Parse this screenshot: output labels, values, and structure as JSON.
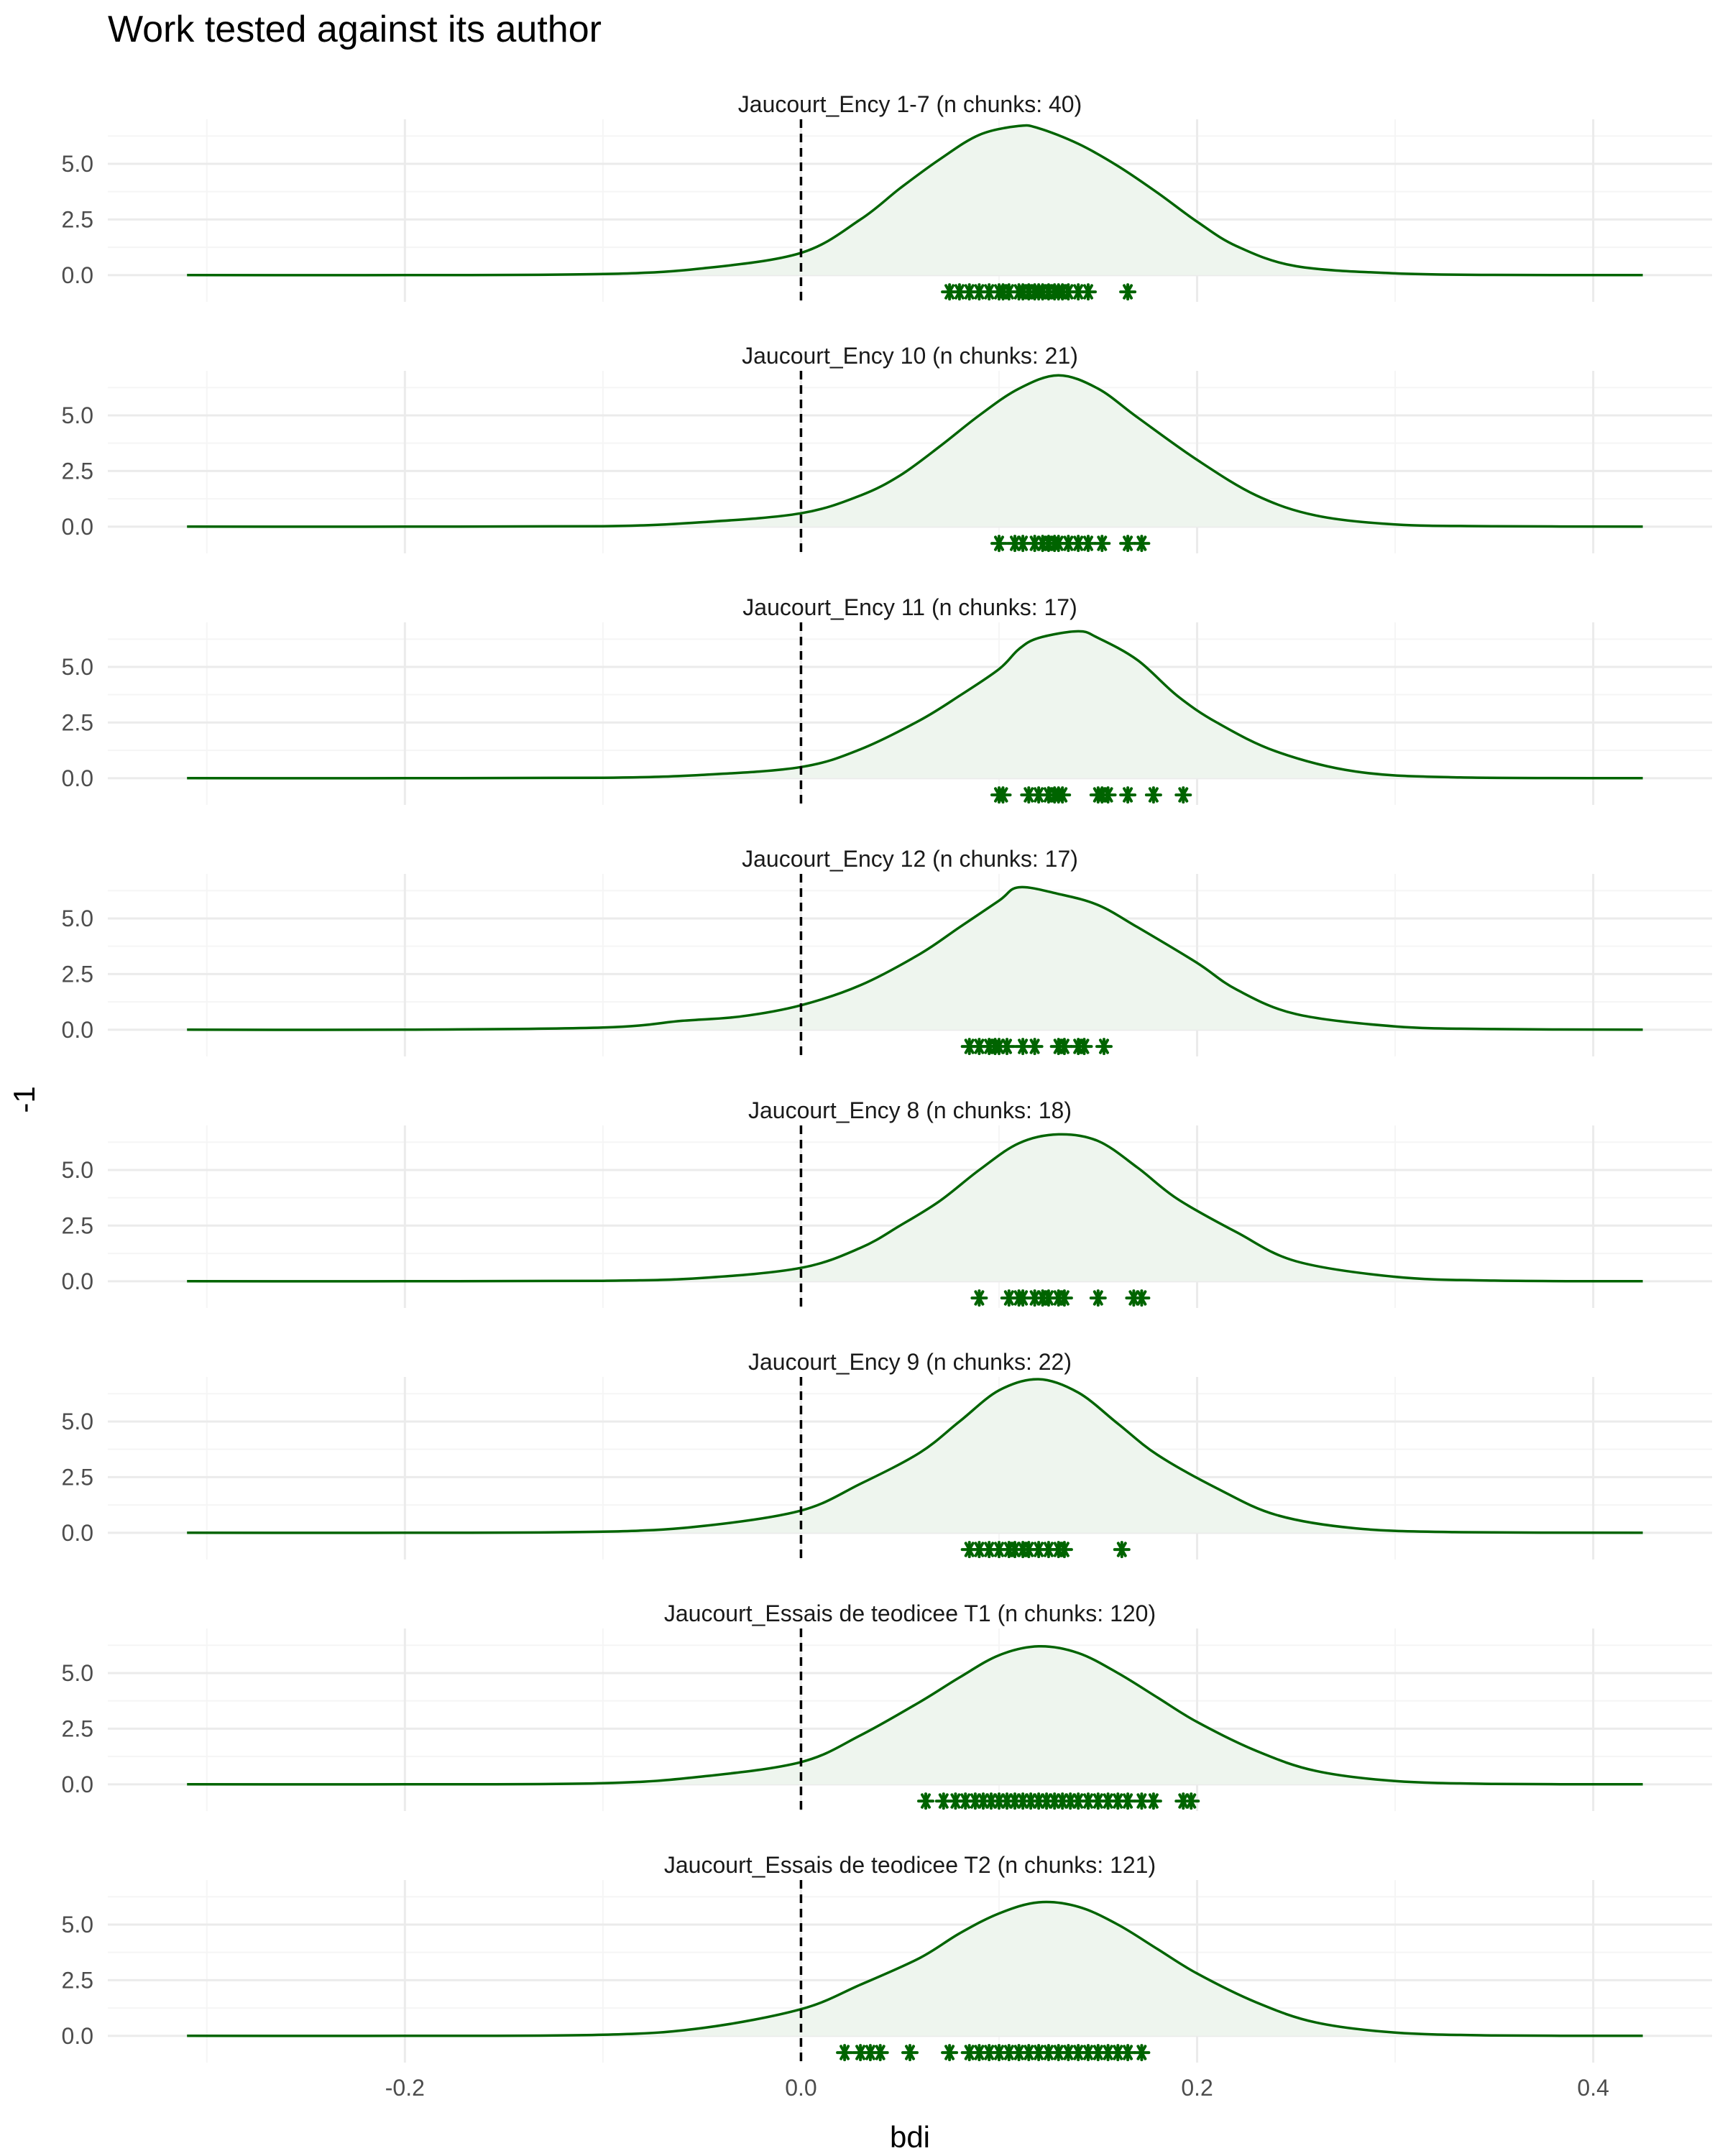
{
  "title": "Work tested against its author",
  "xlabel": "bdi",
  "ylabel": "-1",
  "colors": {
    "line": "#006400",
    "fill": "#eef5ee",
    "points": "#006400",
    "ref_line": "#000000",
    "grid_major": "#ebebeb",
    "grid_minor": "#f5f5f5"
  },
  "chart_data": {
    "type": "area",
    "description": "Faceted density curves of bdi with rug points for each tested work",
    "xlim": [
      -0.35,
      0.46
    ],
    "x_ticks": [
      -0.2,
      0.0,
      0.2,
      0.4
    ],
    "x_tick_labels": [
      "-0.2",
      "0.0",
      "0.2",
      "0.4"
    ],
    "ylim": [
      -1.2,
      7.0
    ],
    "y_ticks": [
      0,
      2.5,
      5
    ],
    "y_tick_labels": [
      "0.0",
      "2.5",
      "5.0"
    ],
    "reference_line_x": 0.0,
    "panels": [
      {
        "label": "Jaucourt_Ency 1-7 (n chunks: 40)",
        "density": {
          "x": [
            -0.31,
            -0.2,
            -0.1,
            -0.05,
            0.0,
            0.03,
            0.05,
            0.07,
            0.09,
            0.11,
            0.12,
            0.14,
            0.16,
            0.18,
            0.2,
            0.22,
            0.25,
            0.3,
            0.35,
            0.425
          ],
          "y": [
            0,
            0,
            0.05,
            0.3,
            1.0,
            2.5,
            3.9,
            5.2,
            6.3,
            6.7,
            6.6,
            5.9,
            4.9,
            3.7,
            2.4,
            1.3,
            0.4,
            0.08,
            0.01,
            0
          ]
        },
        "points": [
          0.075,
          0.08,
          0.085,
          0.09,
          0.095,
          0.1,
          0.102,
          0.105,
          0.11,
          0.112,
          0.115,
          0.118,
          0.12,
          0.122,
          0.125,
          0.128,
          0.13,
          0.132,
          0.135,
          0.14,
          0.145,
          0.165
        ]
      },
      {
        "label": "Jaucourt_Ency 10 (n chunks: 21)",
        "density": {
          "x": [
            -0.31,
            -0.2,
            -0.1,
            -0.05,
            0.0,
            0.03,
            0.05,
            0.07,
            0.09,
            0.11,
            0.13,
            0.15,
            0.17,
            0.2,
            0.23,
            0.26,
            0.3,
            0.35,
            0.425
          ],
          "y": [
            0,
            0,
            0.02,
            0.2,
            0.6,
            1.4,
            2.3,
            3.6,
            5.0,
            6.2,
            6.8,
            6.2,
            4.9,
            3.0,
            1.4,
            0.5,
            0.1,
            0.02,
            0
          ]
        },
        "points": [
          0.1,
          0.108,
          0.112,
          0.118,
          0.122,
          0.125,
          0.128,
          0.13,
          0.135,
          0.14,
          0.145,
          0.152,
          0.165,
          0.172
        ]
      },
      {
        "label": "Jaucourt_Ency 11 (n chunks: 17)",
        "density": {
          "x": [
            -0.31,
            -0.2,
            -0.1,
            -0.05,
            0.0,
            0.03,
            0.06,
            0.08,
            0.1,
            0.11,
            0.12,
            0.14,
            0.15,
            0.17,
            0.19,
            0.21,
            0.24,
            0.28,
            0.33,
            0.425
          ],
          "y": [
            0,
            0,
            0.02,
            0.15,
            0.5,
            1.3,
            2.6,
            3.7,
            4.9,
            5.8,
            6.3,
            6.6,
            6.3,
            5.3,
            3.7,
            2.5,
            1.2,
            0.3,
            0.04,
            0
          ]
        },
        "points": [
          0.1,
          0.102,
          0.115,
          0.12,
          0.125,
          0.128,
          0.13,
          0.132,
          0.15,
          0.152,
          0.155,
          0.165,
          0.178,
          0.193
        ]
      },
      {
        "label": "Jaucourt_Ency 12 (n chunks: 17)",
        "density": {
          "x": [
            -0.31,
            -0.2,
            -0.1,
            -0.06,
            -0.03,
            0.0,
            0.03,
            0.06,
            0.08,
            0.1,
            0.11,
            0.13,
            0.15,
            0.17,
            0.2,
            0.22,
            0.25,
            0.3,
            0.35,
            0.425
          ],
          "y": [
            0,
            0,
            0.1,
            0.4,
            0.6,
            1.1,
            2.0,
            3.4,
            4.6,
            5.8,
            6.4,
            6.1,
            5.6,
            4.6,
            3.0,
            1.8,
            0.7,
            0.15,
            0.03,
            0
          ]
        },
        "points": [
          0.085,
          0.09,
          0.095,
          0.098,
          0.1,
          0.104,
          0.112,
          0.118,
          0.13,
          0.133,
          0.14,
          0.143,
          0.153
        ]
      },
      {
        "label": "Jaucourt_Ency 8 (n chunks: 18)",
        "density": {
          "x": [
            -0.31,
            -0.2,
            -0.1,
            -0.05,
            0.0,
            0.03,
            0.05,
            0.07,
            0.09,
            0.11,
            0.13,
            0.15,
            0.17,
            0.19,
            0.22,
            0.25,
            0.3,
            0.35,
            0.425
          ],
          "y": [
            0,
            0,
            0.02,
            0.15,
            0.6,
            1.5,
            2.5,
            3.6,
            5.0,
            6.2,
            6.6,
            6.3,
            5.1,
            3.7,
            2.2,
            0.9,
            0.2,
            0.03,
            0
          ]
        },
        "points": [
          0.09,
          0.105,
          0.11,
          0.112,
          0.118,
          0.122,
          0.125,
          0.13,
          0.133,
          0.15,
          0.168,
          0.172
        ]
      },
      {
        "label": "Jaucourt_Ency 9 (n chunks: 22)",
        "density": {
          "x": [
            -0.31,
            -0.2,
            -0.1,
            -0.05,
            0.0,
            0.03,
            0.06,
            0.08,
            0.1,
            0.12,
            0.14,
            0.16,
            0.18,
            0.21,
            0.24,
            0.28,
            0.33,
            0.425
          ],
          "y": [
            0,
            0,
            0.05,
            0.3,
            1.0,
            2.2,
            3.6,
            5.0,
            6.4,
            6.9,
            6.3,
            4.9,
            3.5,
            2.0,
            0.8,
            0.2,
            0.03,
            0
          ]
        },
        "points": [
          0.085,
          0.09,
          0.095,
          0.1,
          0.105,
          0.108,
          0.112,
          0.115,
          0.12,
          0.125,
          0.13,
          0.133,
          0.162
        ]
      },
      {
        "label": "Jaucourt_Essais de teodicee T1 (n chunks: 120)",
        "density": {
          "x": [
            -0.31,
            -0.2,
            -0.1,
            -0.05,
            0.0,
            0.03,
            0.06,
            0.08,
            0.1,
            0.12,
            0.14,
            0.16,
            0.18,
            0.2,
            0.23,
            0.26,
            0.3,
            0.35,
            0.425
          ],
          "y": [
            0,
            0,
            0.05,
            0.35,
            1.0,
            2.2,
            3.7,
            4.8,
            5.8,
            6.2,
            5.9,
            5.0,
            3.9,
            2.8,
            1.5,
            0.6,
            0.15,
            0.02,
            0
          ]
        },
        "points": [
          0.063,
          0.072,
          0.078,
          0.083,
          0.088,
          0.092,
          0.096,
          0.1,
          0.104,
          0.108,
          0.112,
          0.116,
          0.12,
          0.124,
          0.128,
          0.132,
          0.136,
          0.14,
          0.145,
          0.15,
          0.155,
          0.16,
          0.165,
          0.172,
          0.178,
          0.193,
          0.197
        ]
      },
      {
        "label": "Jaucourt_Essais de teodicee T2 (n chunks: 121)",
        "density": {
          "x": [
            -0.31,
            -0.2,
            -0.1,
            -0.05,
            0.0,
            0.03,
            0.06,
            0.08,
            0.1,
            0.12,
            0.14,
            0.16,
            0.18,
            0.2,
            0.23,
            0.26,
            0.3,
            0.35,
            0.425
          ],
          "y": [
            0,
            0,
            0.05,
            0.35,
            1.2,
            2.3,
            3.5,
            4.6,
            5.5,
            6.0,
            5.8,
            5.0,
            3.9,
            2.8,
            1.5,
            0.6,
            0.15,
            0.02,
            0
          ]
        },
        "points": [
          0.022,
          0.03,
          0.035,
          0.04,
          0.055,
          0.075,
          0.085,
          0.09,
          0.095,
          0.1,
          0.105,
          0.11,
          0.115,
          0.12,
          0.125,
          0.13,
          0.135,
          0.14,
          0.145,
          0.15,
          0.155,
          0.16,
          0.165,
          0.172
        ]
      }
    ]
  }
}
